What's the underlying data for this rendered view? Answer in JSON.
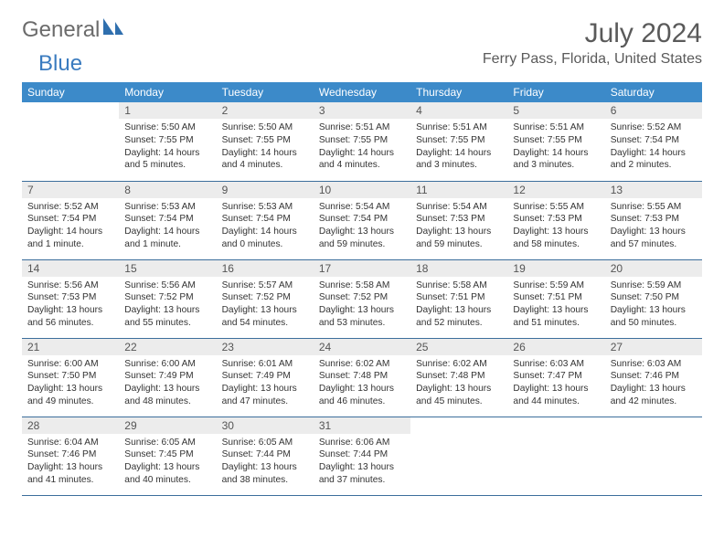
{
  "logo": {
    "part1": "General",
    "part2": "Blue"
  },
  "title": "July 2024",
  "location": "Ferry Pass, Florida, United States",
  "colors": {
    "header_bg": "#3c8ac9",
    "header_fg": "#ffffff",
    "daynum_bg": "#ececec",
    "rule": "#3c6e9c",
    "text": "#333333",
    "logo_gray": "#6b6b6b",
    "logo_blue": "#3a7bbf"
  },
  "weekdays": [
    "Sunday",
    "Monday",
    "Tuesday",
    "Wednesday",
    "Thursday",
    "Friday",
    "Saturday"
  ],
  "weeks": [
    [
      {
        "n": "",
        "sr": "",
        "ss": "",
        "dl": ""
      },
      {
        "n": "1",
        "sr": "Sunrise: 5:50 AM",
        "ss": "Sunset: 7:55 PM",
        "dl": "Daylight: 14 hours and 5 minutes."
      },
      {
        "n": "2",
        "sr": "Sunrise: 5:50 AM",
        "ss": "Sunset: 7:55 PM",
        "dl": "Daylight: 14 hours and 4 minutes."
      },
      {
        "n": "3",
        "sr": "Sunrise: 5:51 AM",
        "ss": "Sunset: 7:55 PM",
        "dl": "Daylight: 14 hours and 4 minutes."
      },
      {
        "n": "4",
        "sr": "Sunrise: 5:51 AM",
        "ss": "Sunset: 7:55 PM",
        "dl": "Daylight: 14 hours and 3 minutes."
      },
      {
        "n": "5",
        "sr": "Sunrise: 5:51 AM",
        "ss": "Sunset: 7:55 PM",
        "dl": "Daylight: 14 hours and 3 minutes."
      },
      {
        "n": "6",
        "sr": "Sunrise: 5:52 AM",
        "ss": "Sunset: 7:54 PM",
        "dl": "Daylight: 14 hours and 2 minutes."
      }
    ],
    [
      {
        "n": "7",
        "sr": "Sunrise: 5:52 AM",
        "ss": "Sunset: 7:54 PM",
        "dl": "Daylight: 14 hours and 1 minute."
      },
      {
        "n": "8",
        "sr": "Sunrise: 5:53 AM",
        "ss": "Sunset: 7:54 PM",
        "dl": "Daylight: 14 hours and 1 minute."
      },
      {
        "n": "9",
        "sr": "Sunrise: 5:53 AM",
        "ss": "Sunset: 7:54 PM",
        "dl": "Daylight: 14 hours and 0 minutes."
      },
      {
        "n": "10",
        "sr": "Sunrise: 5:54 AM",
        "ss": "Sunset: 7:54 PM",
        "dl": "Daylight: 13 hours and 59 minutes."
      },
      {
        "n": "11",
        "sr": "Sunrise: 5:54 AM",
        "ss": "Sunset: 7:53 PM",
        "dl": "Daylight: 13 hours and 59 minutes."
      },
      {
        "n": "12",
        "sr": "Sunrise: 5:55 AM",
        "ss": "Sunset: 7:53 PM",
        "dl": "Daylight: 13 hours and 58 minutes."
      },
      {
        "n": "13",
        "sr": "Sunrise: 5:55 AM",
        "ss": "Sunset: 7:53 PM",
        "dl": "Daylight: 13 hours and 57 minutes."
      }
    ],
    [
      {
        "n": "14",
        "sr": "Sunrise: 5:56 AM",
        "ss": "Sunset: 7:53 PM",
        "dl": "Daylight: 13 hours and 56 minutes."
      },
      {
        "n": "15",
        "sr": "Sunrise: 5:56 AM",
        "ss": "Sunset: 7:52 PM",
        "dl": "Daylight: 13 hours and 55 minutes."
      },
      {
        "n": "16",
        "sr": "Sunrise: 5:57 AM",
        "ss": "Sunset: 7:52 PM",
        "dl": "Daylight: 13 hours and 54 minutes."
      },
      {
        "n": "17",
        "sr": "Sunrise: 5:58 AM",
        "ss": "Sunset: 7:52 PM",
        "dl": "Daylight: 13 hours and 53 minutes."
      },
      {
        "n": "18",
        "sr": "Sunrise: 5:58 AM",
        "ss": "Sunset: 7:51 PM",
        "dl": "Daylight: 13 hours and 52 minutes."
      },
      {
        "n": "19",
        "sr": "Sunrise: 5:59 AM",
        "ss": "Sunset: 7:51 PM",
        "dl": "Daylight: 13 hours and 51 minutes."
      },
      {
        "n": "20",
        "sr": "Sunrise: 5:59 AM",
        "ss": "Sunset: 7:50 PM",
        "dl": "Daylight: 13 hours and 50 minutes."
      }
    ],
    [
      {
        "n": "21",
        "sr": "Sunrise: 6:00 AM",
        "ss": "Sunset: 7:50 PM",
        "dl": "Daylight: 13 hours and 49 minutes."
      },
      {
        "n": "22",
        "sr": "Sunrise: 6:00 AM",
        "ss": "Sunset: 7:49 PM",
        "dl": "Daylight: 13 hours and 48 minutes."
      },
      {
        "n": "23",
        "sr": "Sunrise: 6:01 AM",
        "ss": "Sunset: 7:49 PM",
        "dl": "Daylight: 13 hours and 47 minutes."
      },
      {
        "n": "24",
        "sr": "Sunrise: 6:02 AM",
        "ss": "Sunset: 7:48 PM",
        "dl": "Daylight: 13 hours and 46 minutes."
      },
      {
        "n": "25",
        "sr": "Sunrise: 6:02 AM",
        "ss": "Sunset: 7:48 PM",
        "dl": "Daylight: 13 hours and 45 minutes."
      },
      {
        "n": "26",
        "sr": "Sunrise: 6:03 AM",
        "ss": "Sunset: 7:47 PM",
        "dl": "Daylight: 13 hours and 44 minutes."
      },
      {
        "n": "27",
        "sr": "Sunrise: 6:03 AM",
        "ss": "Sunset: 7:46 PM",
        "dl": "Daylight: 13 hours and 42 minutes."
      }
    ],
    [
      {
        "n": "28",
        "sr": "Sunrise: 6:04 AM",
        "ss": "Sunset: 7:46 PM",
        "dl": "Daylight: 13 hours and 41 minutes."
      },
      {
        "n": "29",
        "sr": "Sunrise: 6:05 AM",
        "ss": "Sunset: 7:45 PM",
        "dl": "Daylight: 13 hours and 40 minutes."
      },
      {
        "n": "30",
        "sr": "Sunrise: 6:05 AM",
        "ss": "Sunset: 7:44 PM",
        "dl": "Daylight: 13 hours and 38 minutes."
      },
      {
        "n": "31",
        "sr": "Sunrise: 6:06 AM",
        "ss": "Sunset: 7:44 PM",
        "dl": "Daylight: 13 hours and 37 minutes."
      },
      {
        "n": "",
        "sr": "",
        "ss": "",
        "dl": ""
      },
      {
        "n": "",
        "sr": "",
        "ss": "",
        "dl": ""
      },
      {
        "n": "",
        "sr": "",
        "ss": "",
        "dl": ""
      }
    ]
  ]
}
